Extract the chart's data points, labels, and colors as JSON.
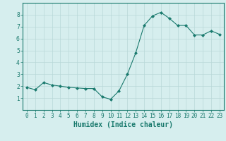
{
  "x": [
    0,
    1,
    2,
    3,
    4,
    5,
    6,
    7,
    8,
    9,
    10,
    11,
    12,
    13,
    14,
    15,
    16,
    17,
    18,
    19,
    20,
    21,
    22,
    23
  ],
  "y": [
    1.9,
    1.7,
    2.3,
    2.1,
    2.0,
    1.9,
    1.85,
    1.8,
    1.8,
    1.1,
    0.9,
    1.6,
    3.0,
    4.8,
    7.1,
    7.9,
    8.2,
    7.7,
    7.1,
    7.1,
    6.3,
    6.3,
    6.65,
    6.35
  ],
  "line_color": "#1a7a6e",
  "marker": "D",
  "marker_size": 2.0,
  "bg_color": "#d6eeee",
  "grid_color": "#b8d8d8",
  "xlabel": "Humidex (Indice chaleur)",
  "ylim": [
    0,
    9
  ],
  "xlim": [
    -0.5,
    23.5
  ],
  "yticks": [
    1,
    2,
    3,
    4,
    5,
    6,
    7,
    8
  ],
  "xticks": [
    0,
    1,
    2,
    3,
    4,
    5,
    6,
    7,
    8,
    9,
    10,
    11,
    12,
    13,
    14,
    15,
    16,
    17,
    18,
    19,
    20,
    21,
    22,
    23
  ],
  "tick_fontsize": 5.5,
  "xlabel_fontsize": 7.0,
  "linewidth": 0.8
}
